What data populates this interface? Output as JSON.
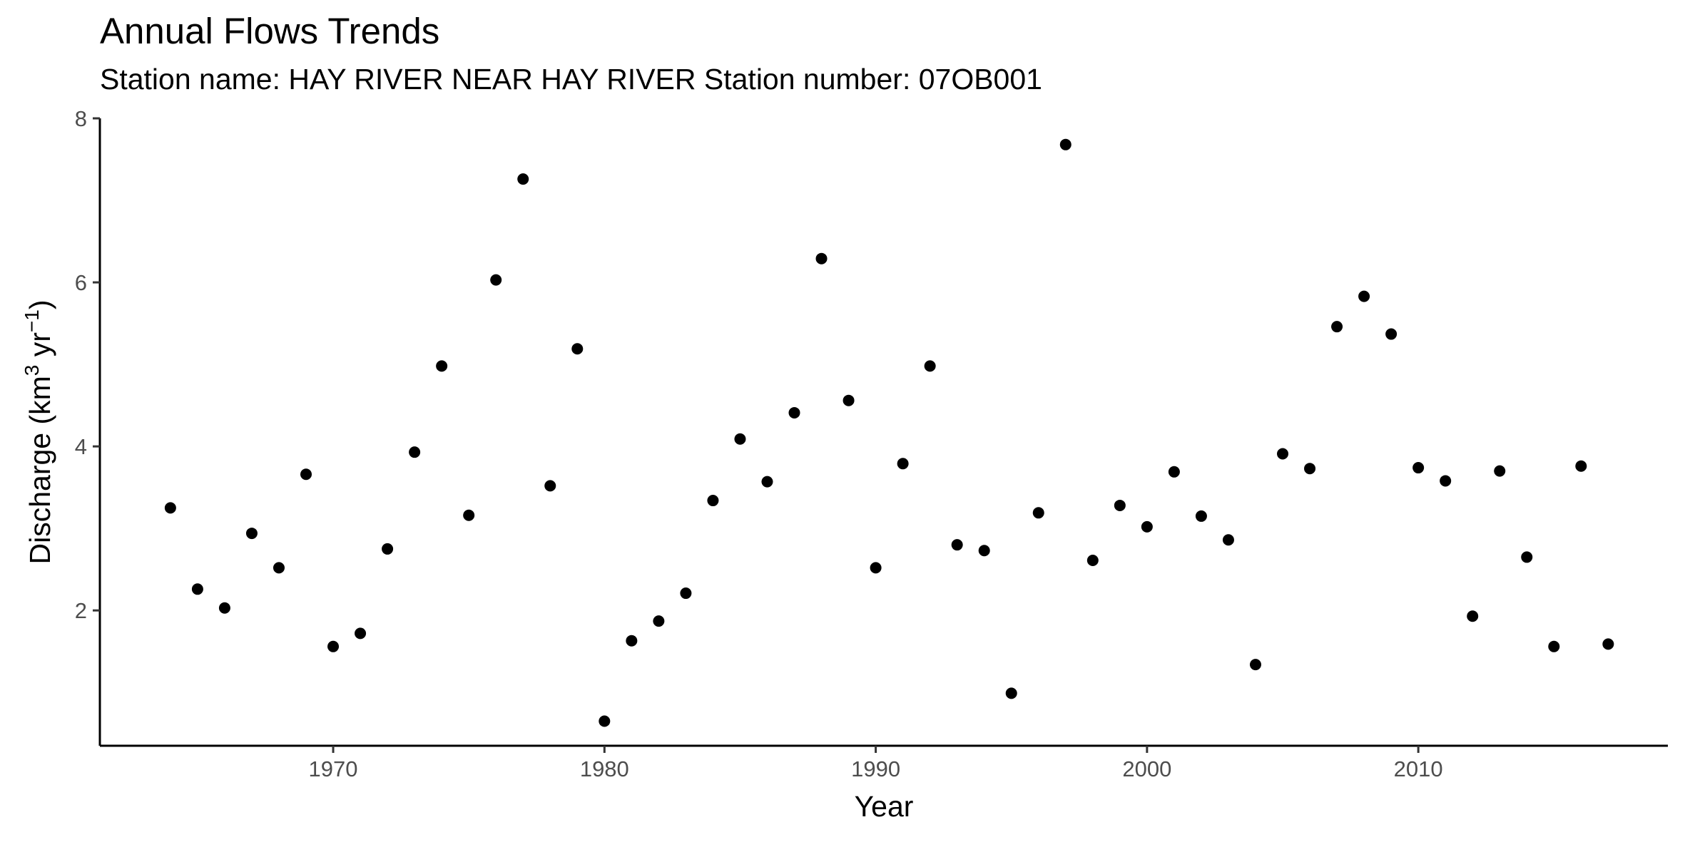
{
  "chart_data": {
    "type": "scatter",
    "title": "Annual Flows Trends",
    "subtitle": "Station name: HAY RIVER NEAR HAY RIVER Station number: 07OB001",
    "xlabel": "Year",
    "ylabel": {
      "prefix": "Discharge (km",
      "sup1": "3",
      "middle": " yr",
      "sup2": "−1",
      "suffix": ")"
    },
    "xlim": [
      1961.4,
      2019.2
    ],
    "ylim": [
      0.35,
      8.0
    ],
    "xticks": [
      1970,
      1980,
      1990,
      2000,
      2010
    ],
    "yticks": [
      2,
      4,
      6,
      8
    ],
    "grid": false,
    "legend": "none",
    "point_color": "#000000",
    "x": [
      1964,
      1965,
      1966,
      1967,
      1968,
      1969,
      1970,
      1971,
      1972,
      1973,
      1974,
      1975,
      1976,
      1977,
      1978,
      1979,
      1980,
      1981,
      1982,
      1983,
      1984,
      1985,
      1986,
      1987,
      1988,
      1989,
      1990,
      1991,
      1992,
      1993,
      1994,
      1995,
      1996,
      1997,
      1998,
      1999,
      2000,
      2001,
      2002,
      2003,
      2004,
      2005,
      2006,
      2007,
      2008,
      2009,
      2010,
      2011,
      2012,
      2013,
      2014,
      2015,
      2016,
      2017
    ],
    "y": [
      3.25,
      2.26,
      2.03,
      2.94,
      2.52,
      3.66,
      1.56,
      1.72,
      2.75,
      3.93,
      4.98,
      3.16,
      6.03,
      7.26,
      3.52,
      5.19,
      0.65,
      1.63,
      1.87,
      2.21,
      3.34,
      4.09,
      3.57,
      4.41,
      6.29,
      4.56,
      2.52,
      3.79,
      4.98,
      2.8,
      2.73,
      0.99,
      3.19,
      7.68,
      2.61,
      3.28,
      3.02,
      3.69,
      3.15,
      2.86,
      1.34,
      3.91,
      3.73,
      5.46,
      5.83,
      5.37,
      3.74,
      3.58,
      1.93,
      3.7,
      2.65,
      1.56,
      3.76,
      1.59
    ]
  }
}
